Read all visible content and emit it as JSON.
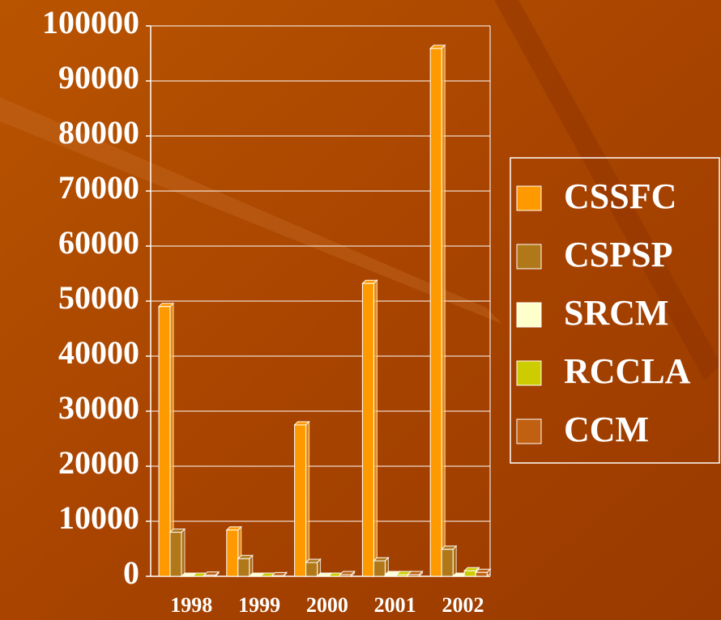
{
  "chart_data": {
    "type": "bar",
    "categories": [
      "1998",
      "1999",
      "2000",
      "2001",
      "2002"
    ],
    "series": [
      {
        "name": "CSSFC",
        "color": "#ff9900",
        "values": [
          49000,
          8400,
          27500,
          53200,
          95900
        ]
      },
      {
        "name": "CSPSP",
        "color": "#b07818",
        "values": [
          8000,
          3200,
          2500,
          2800,
          4900
        ]
      },
      {
        "name": "SRCM",
        "color": "#ffffcc",
        "values": [
          0,
          0,
          0,
          300,
          0
        ]
      },
      {
        "name": "RCCLA",
        "color": "#cccc00",
        "values": [
          0,
          0,
          0,
          300,
          1000
        ]
      },
      {
        "name": "CCM",
        "color": "#c06010",
        "values": [
          200,
          100,
          300,
          300,
          700
        ]
      }
    ],
    "ylim": [
      0,
      100000
    ],
    "yticks": [
      0,
      10000,
      20000,
      30000,
      40000,
      50000,
      60000,
      70000,
      80000,
      90000,
      100000
    ],
    "grid": true,
    "legend": "right"
  }
}
